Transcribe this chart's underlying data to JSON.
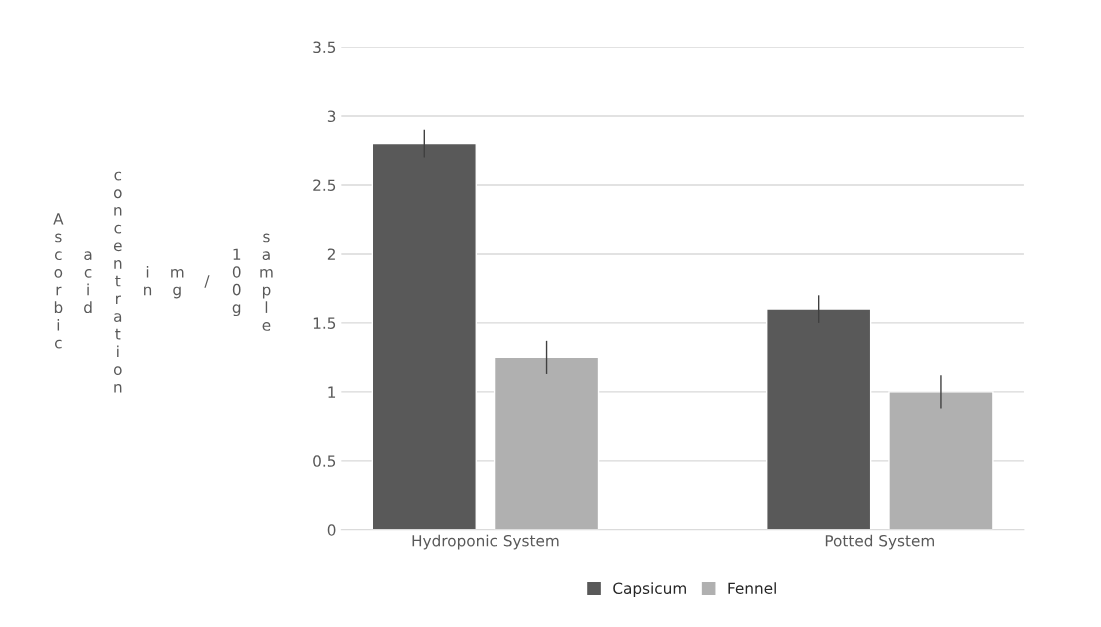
{
  "chart_data": {
    "type": "bar",
    "ylabel": "Ascorbic acid concentration in mg / 100g sample",
    "categories": [
      "Hydroponic System",
      "Potted System"
    ],
    "series": [
      {
        "name": "Capsicum",
        "color": "#595959",
        "values": [
          2.8,
          1.6
        ],
        "errors": [
          0.1,
          0.1
        ]
      },
      {
        "name": "Fennel",
        "color": "#b0b0b0",
        "values": [
          1.25,
          1.0
        ],
        "errors": [
          0.12,
          0.12
        ]
      }
    ],
    "ylim": [
      0,
      3.5
    ],
    "yticks": [
      0,
      0.5,
      1,
      1.5,
      2,
      2.5,
      3,
      3.5
    ],
    "grid": "y",
    "legend": "bottom"
  }
}
